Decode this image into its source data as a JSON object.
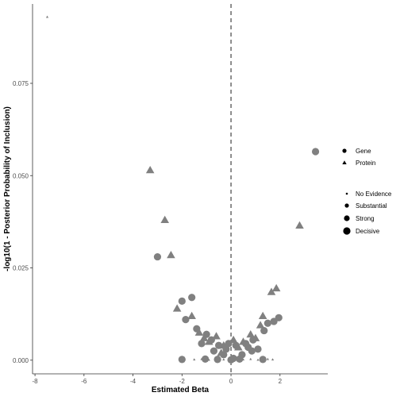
{
  "chart_data": {
    "type": "scatter",
    "xlabel": "Estimated Beta",
    "ylabel": "-log10(1 - Posterior Probability of Inclusion)",
    "xlim": [
      -8.1,
      3.95
    ],
    "ylim": [
      -0.0037,
      0.0965
    ],
    "x_ticks": [
      -8,
      -6,
      -4,
      -2,
      0,
      2
    ],
    "x_tick_labels": [
      "-8",
      "-6",
      "-4",
      "-2",
      "0",
      "2"
    ],
    "y_ticks": [
      0.0,
      0.025,
      0.05,
      0.075
    ],
    "y_tick_labels": [
      "0.000",
      "0.025",
      "0.050",
      "0.075"
    ],
    "reference_line_x": 0,
    "grid": false,
    "point_color": "#808080",
    "legend_type": {
      "entries": [
        {
          "label": "Gene",
          "shape": "circle"
        },
        {
          "label": "Protein",
          "shape": "triangle"
        }
      ]
    },
    "legend_evidence": {
      "entries": [
        {
          "label": "No Evidence",
          "size": "tiny"
        },
        {
          "label": "Substantial",
          "size": "small"
        },
        {
          "label": "Strong",
          "size": "medium"
        },
        {
          "label": "Decisive",
          "size": "large"
        }
      ]
    },
    "series": [
      {
        "shape": "triangle",
        "points": [
          {
            "x": -7.5,
            "y": 0.093,
            "size": "tiny"
          },
          {
            "x": -3.3,
            "y": 0.0515,
            "size": "large"
          },
          {
            "x": -2.7,
            "y": 0.038,
            "size": "large"
          },
          {
            "x": -2.45,
            "y": 0.0285,
            "size": "large"
          },
          {
            "x": 2.8,
            "y": 0.0365,
            "size": "large"
          },
          {
            "x": -2.2,
            "y": 0.014,
            "size": "large"
          },
          {
            "x": -1.6,
            "y": 0.012,
            "size": "large"
          },
          {
            "x": 1.85,
            "y": 0.0195,
            "size": "large"
          },
          {
            "x": 1.65,
            "y": 0.0185,
            "size": "large"
          },
          {
            "x": 1.3,
            "y": 0.012,
            "size": "large"
          },
          {
            "x": 1.2,
            "y": 0.0095,
            "size": "large"
          },
          {
            "x": -1.3,
            "y": 0.0075,
            "size": "large"
          },
          {
            "x": -1.1,
            "y": 0.006,
            "size": "large"
          },
          {
            "x": -0.9,
            "y": 0.005,
            "size": "large"
          },
          {
            "x": -0.6,
            "y": 0.0065,
            "size": "large"
          },
          {
            "x": -0.3,
            "y": 0.004,
            "size": "large"
          },
          {
            "x": 0.3,
            "y": 0.0035,
            "size": "large"
          },
          {
            "x": 0.5,
            "y": 0.005,
            "size": "large"
          },
          {
            "x": 0.8,
            "y": 0.007,
            "size": "large"
          },
          {
            "x": 1.0,
            "y": 0.006,
            "size": "large"
          },
          {
            "x": -0.4,
            "y": 0.002,
            "size": "large"
          },
          {
            "x": 0.1,
            "y": 0.0055,
            "size": "large"
          },
          {
            "x": -1.9,
            "y": 0.0003,
            "size": "tiny"
          },
          {
            "x": -1.5,
            "y": 0.0002,
            "size": "tiny"
          },
          {
            "x": -1.2,
            "y": 0.0003,
            "size": "tiny"
          },
          {
            "x": -0.9,
            "y": 0.0001,
            "size": "tiny"
          },
          {
            "x": -0.6,
            "y": 0.0003,
            "size": "tiny"
          },
          {
            "x": -0.3,
            "y": 0.0002,
            "size": "tiny"
          },
          {
            "x": 0.2,
            "y": 0.0003,
            "size": "tiny"
          },
          {
            "x": 0.5,
            "y": 0.0002,
            "size": "tiny"
          },
          {
            "x": 0.8,
            "y": 0.0003,
            "size": "tiny"
          },
          {
            "x": 1.1,
            "y": 0.0001,
            "size": "tiny"
          },
          {
            "x": 1.5,
            "y": 0.0003,
            "size": "tiny"
          },
          {
            "x": 1.7,
            "y": 0.0002,
            "size": "tiny"
          }
        ]
      },
      {
        "shape": "circle",
        "points": [
          {
            "x": 3.45,
            "y": 0.0565,
            "size": "large"
          },
          {
            "x": -3.0,
            "y": 0.028,
            "size": "large"
          },
          {
            "x": -1.6,
            "y": 0.017,
            "size": "large"
          },
          {
            "x": -2.0,
            "y": 0.016,
            "size": "large"
          },
          {
            "x": -1.85,
            "y": 0.011,
            "size": "large"
          },
          {
            "x": -1.4,
            "y": 0.0085,
            "size": "large"
          },
          {
            "x": -1.0,
            "y": 0.007,
            "size": "large"
          },
          {
            "x": -0.8,
            "y": 0.0055,
            "size": "large"
          },
          {
            "x": -0.5,
            "y": 0.004,
            "size": "large"
          },
          {
            "x": -0.2,
            "y": 0.003,
            "size": "large"
          },
          {
            "x": 0.2,
            "y": 0.004,
            "size": "large"
          },
          {
            "x": 0.6,
            "y": 0.0045,
            "size": "large"
          },
          {
            "x": 0.9,
            "y": 0.0055,
            "size": "large"
          },
          {
            "x": 1.5,
            "y": 0.01,
            "size": "large"
          },
          {
            "x": 1.95,
            "y": 0.0115,
            "size": "large"
          },
          {
            "x": 1.75,
            "y": 0.0105,
            "size": "large"
          },
          {
            "x": 1.35,
            "y": 0.008,
            "size": "large"
          },
          {
            "x": -1.2,
            "y": 0.0045,
            "size": "large"
          },
          {
            "x": -0.7,
            "y": 0.0025,
            "size": "large"
          },
          {
            "x": -0.3,
            "y": 0.0015,
            "size": "large"
          },
          {
            "x": 0.1,
            "y": 0.0005,
            "size": "large"
          },
          {
            "x": 0.45,
            "y": 0.0015,
            "size": "large"
          },
          {
            "x": 0.85,
            "y": 0.0025,
            "size": "large"
          },
          {
            "x": 1.1,
            "y": 0.003,
            "size": "large"
          },
          {
            "x": -2.0,
            "y": 0.0002,
            "size": "large"
          },
          {
            "x": -1.05,
            "y": 0.0003,
            "size": "large"
          },
          {
            "x": -0.55,
            "y": 0.0002,
            "size": "large"
          },
          {
            "x": 0.0,
            "y": 0.0001,
            "size": "large"
          },
          {
            "x": 0.35,
            "y": 0.0003,
            "size": "large"
          },
          {
            "x": 1.3,
            "y": 0.0002,
            "size": "large"
          },
          {
            "x": -0.1,
            "y": 0.0045,
            "size": "large"
          },
          {
            "x": 0.7,
            "y": 0.0035,
            "size": "large"
          }
        ]
      }
    ]
  }
}
